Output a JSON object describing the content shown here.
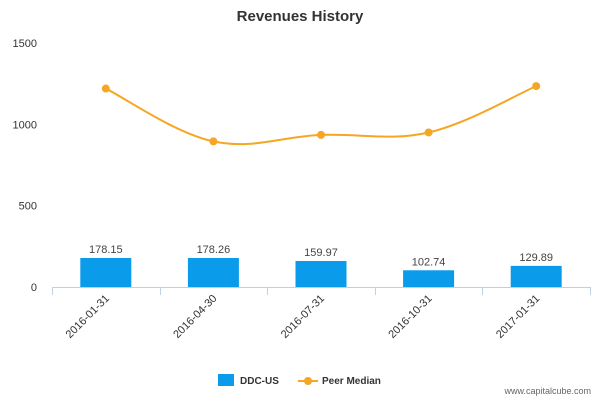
{
  "chart_data": {
    "type": "bar",
    "title": "Revenues History",
    "xlabel": "",
    "ylabel": "",
    "ylim": [
      0,
      1500
    ],
    "yticks": [
      0,
      500,
      1000,
      1500
    ],
    "categories": [
      "2016-01-31",
      "2016-04-30",
      "2016-07-31",
      "2016-10-31",
      "2017-01-31"
    ],
    "series": [
      {
        "name": "DDC-US",
        "type": "bar",
        "color": "#0a9bea",
        "values": [
          178.15,
          178.26,
          159.97,
          102.74,
          129.89
        ],
        "labels": [
          "178.15",
          "178.26",
          "159.97",
          "102.74",
          "129.89"
        ]
      },
      {
        "name": "Peer Median",
        "type": "line",
        "color": "#f5a623",
        "values": [
          1220,
          895,
          935,
          950,
          1235
        ]
      }
    ],
    "grid": false,
    "legend_position": "bottom-center"
  },
  "credit": "www.capitalcube.com"
}
